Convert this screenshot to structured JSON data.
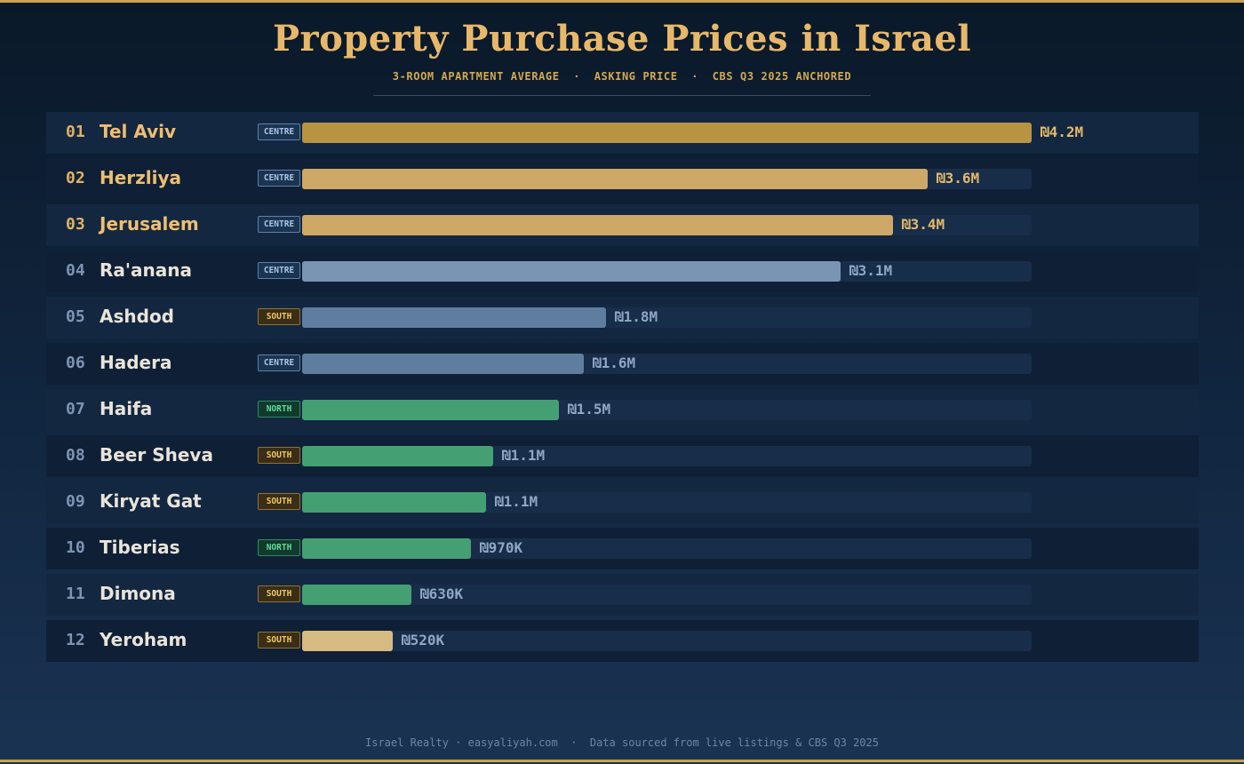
{
  "chart_data": {
    "type": "bar",
    "orientation": "horizontal",
    "title": "Property Purchase Prices in Israel",
    "subtitle": {
      "metric": "3-ROOM APARTMENT AVERAGE",
      "basis": "ASKING PRICE",
      "source": "CBS Q3 2025 ANCHORED",
      "separator": "  ·  "
    },
    "value_unit": "ILS",
    "xlim": [
      0,
      4200000
    ],
    "categories": [
      "Tel Aviv",
      "Herzliya",
      "Jerusalem",
      "Ra'anana",
      "Ashdod",
      "Hadera",
      "Haifa",
      "Beer Sheva",
      "Kiryat Gat",
      "Tiberias",
      "Dimona",
      "Yeroham"
    ],
    "values": [
      4200000,
      3600000,
      3400000,
      3100000,
      1750000,
      1620000,
      1480000,
      1100000,
      1060000,
      970000,
      630000,
      520000
    ],
    "items": [
      {
        "rank": "01",
        "city": "Tel Aviv",
        "region": "CENTRE",
        "value": 4200000,
        "label": "₪4.2M",
        "color": "#b89342"
      },
      {
        "rank": "02",
        "city": "Herzliya",
        "region": "CENTRE",
        "value": 3600000,
        "label": "₪3.6M",
        "color": "#cea867"
      },
      {
        "rank": "03",
        "city": "Jerusalem",
        "region": "CENTRE",
        "value": 3400000,
        "label": "₪3.4M",
        "color": "#cea867"
      },
      {
        "rank": "04",
        "city": "Ra'anana",
        "region": "CENTRE",
        "value": 3100000,
        "label": "₪3.1M",
        "color": "#7a95b4"
      },
      {
        "rank": "05",
        "city": "Ashdod",
        "region": "SOUTH",
        "value": 1750000,
        "label": "₪1.8M",
        "color": "#5f7d9e"
      },
      {
        "rank": "06",
        "city": "Hadera",
        "region": "CENTRE",
        "value": 1620000,
        "label": "₪1.6M",
        "color": "#5f7d9e"
      },
      {
        "rank": "07",
        "city": "Haifa",
        "region": "NORTH",
        "value": 1480000,
        "label": "₪1.5M",
        "color": "#44a072"
      },
      {
        "rank": "08",
        "city": "Beer Sheva",
        "region": "SOUTH",
        "value": 1100000,
        "label": "₪1.1M",
        "color": "#44a072"
      },
      {
        "rank": "09",
        "city": "Kiryat Gat",
        "region": "SOUTH",
        "value": 1060000,
        "label": "₪1.1M",
        "color": "#44a072"
      },
      {
        "rank": "10",
        "city": "Tiberias",
        "region": "NORTH",
        "value": 970000,
        "label": "₪970K",
        "color": "#44a072"
      },
      {
        "rank": "11",
        "city": "Dimona",
        "region": "SOUTH",
        "value": 630000,
        "label": "₪630K",
        "color": "#44a072"
      },
      {
        "rank": "12",
        "city": "Yeroham",
        "region": "SOUTH",
        "value": 520000,
        "label": "₪520K",
        "color": "#d6bb82"
      }
    ],
    "highlighted_top": 3
  },
  "footer": {
    "brand": "Israel Realty · easyaliyah.com",
    "separator": "  ·  ",
    "note": "Data sourced from live listings & CBS Q3 2025"
  },
  "colors": {
    "accent_gold": "#e8b86a",
    "frame": "#c9a24e",
    "track": "#182d49"
  }
}
